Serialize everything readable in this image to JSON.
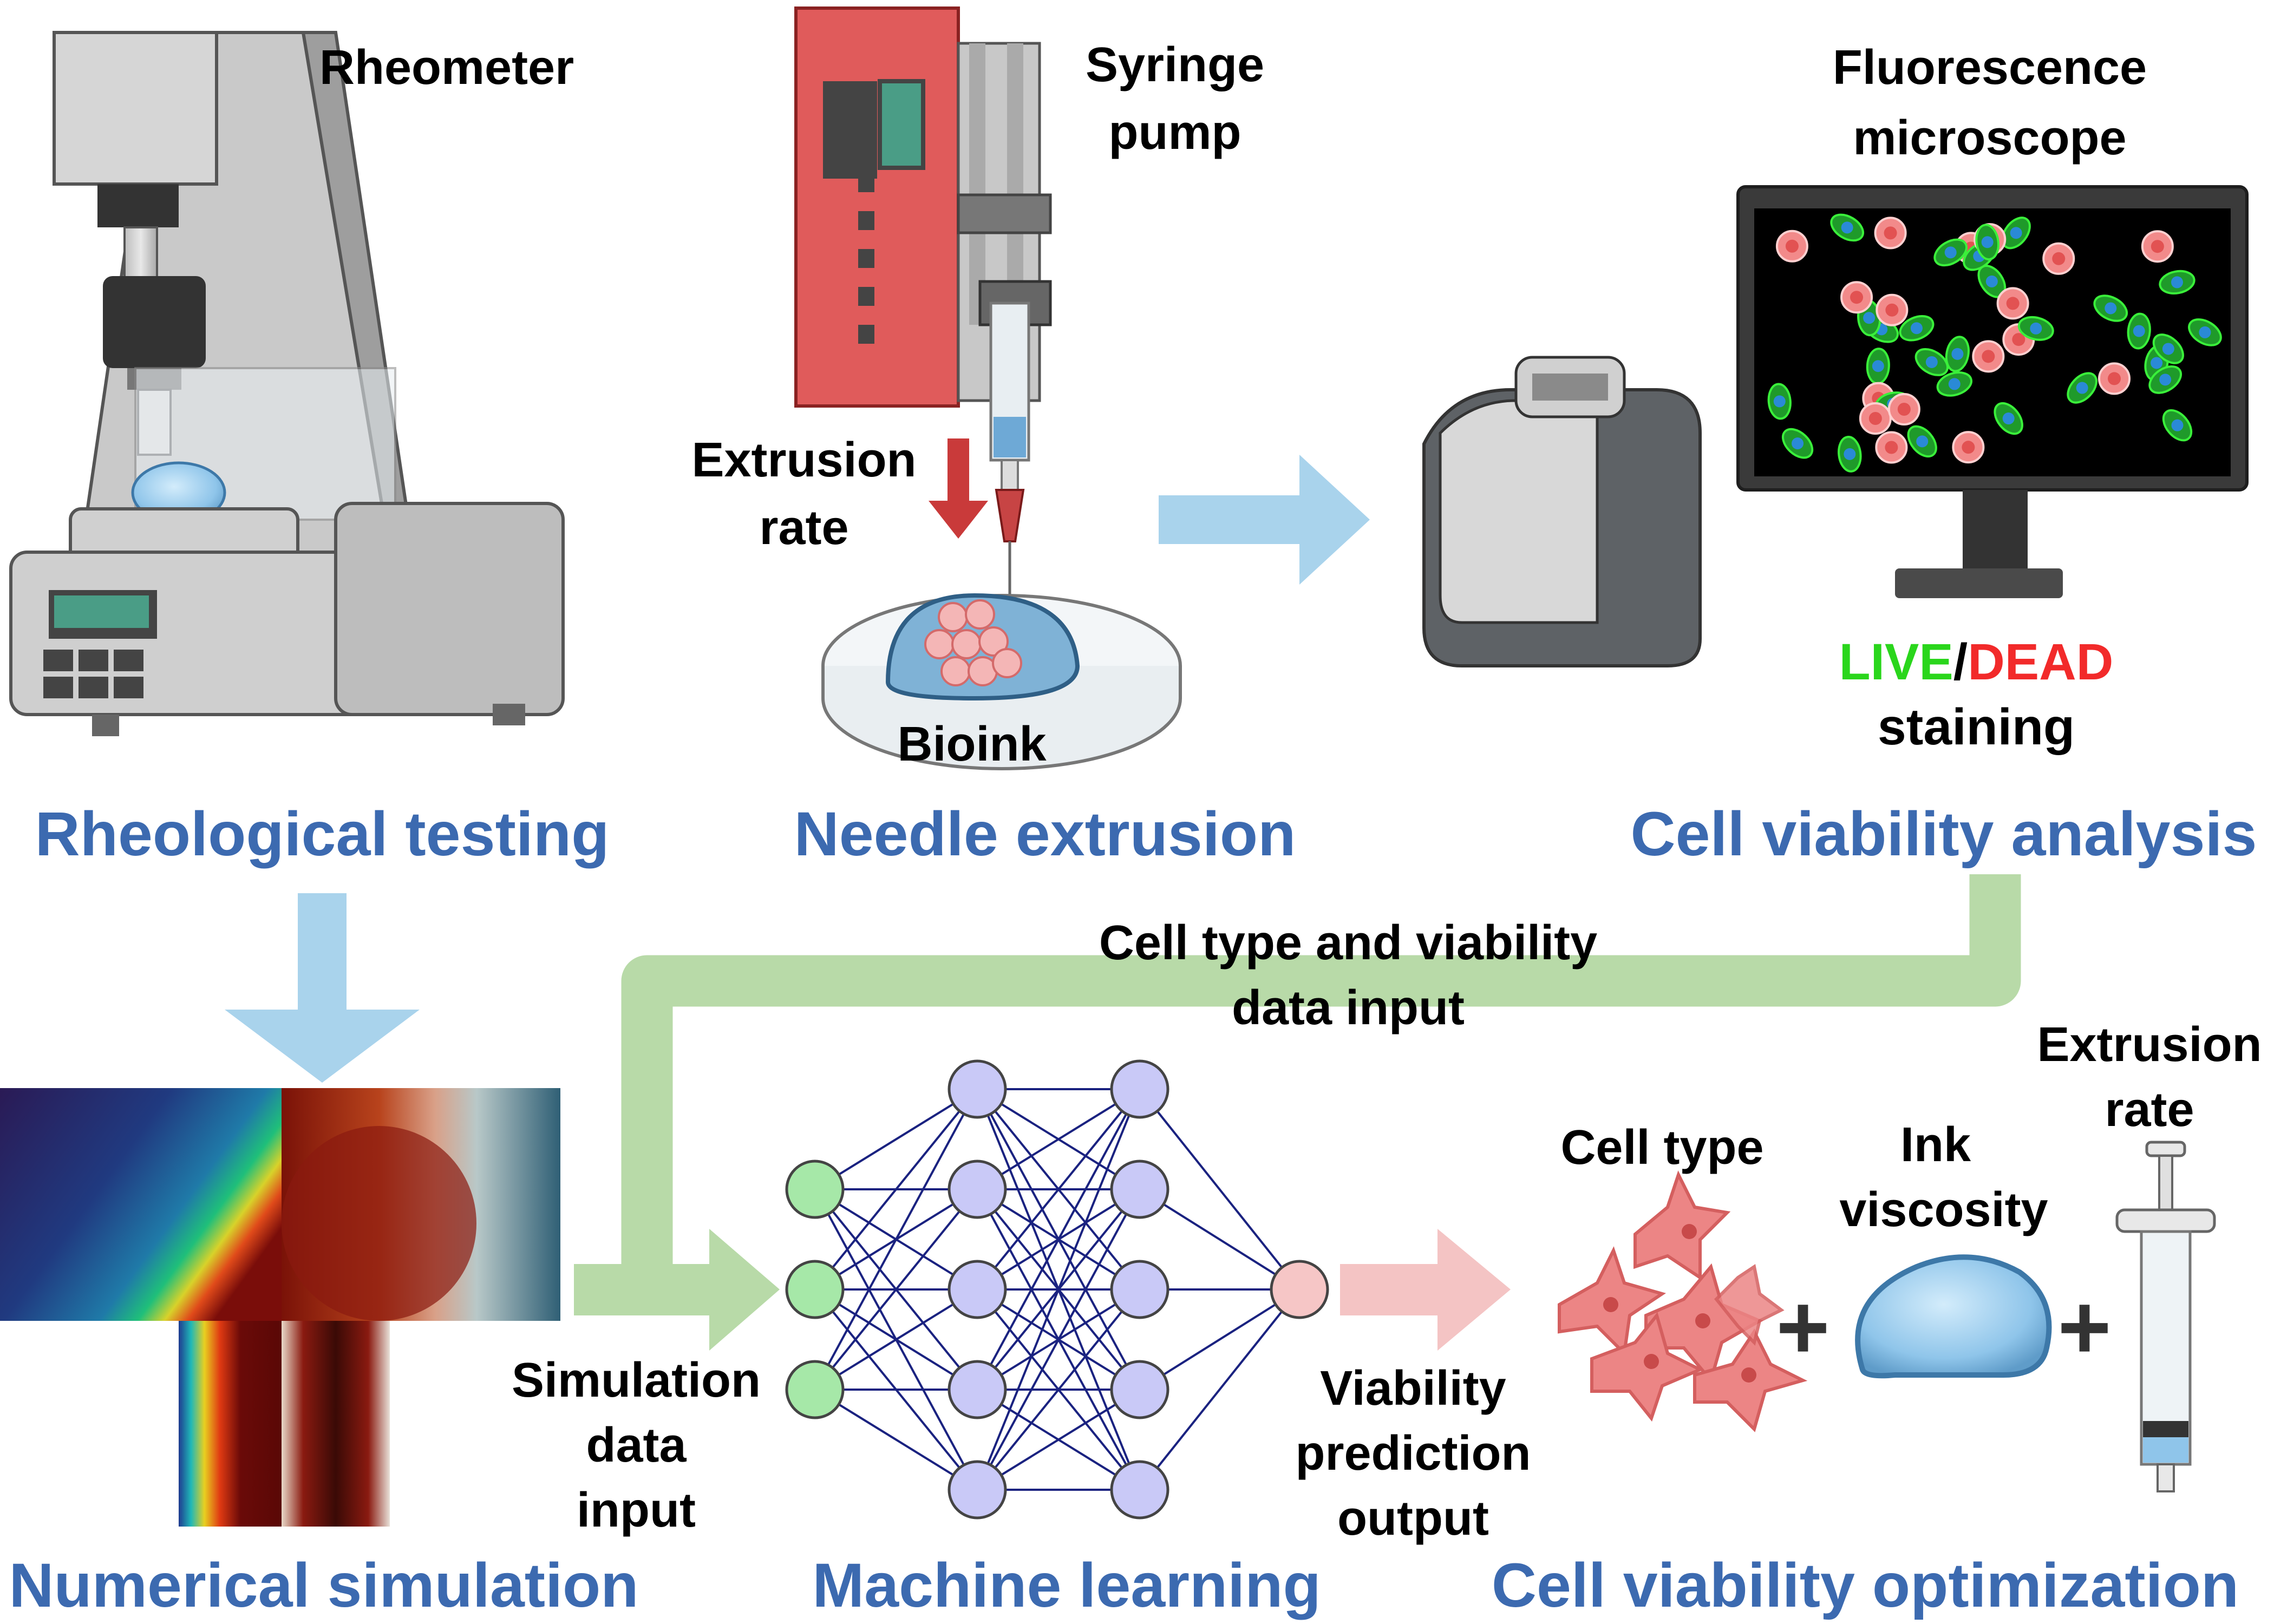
{
  "labels": {
    "rheometer": "Rheometer",
    "syringe_pump_1": "Syringe",
    "syringe_pump_2": "pump",
    "fluorescence_1": "Fluorescence",
    "fluorescence_2": "microscope",
    "extrusion_rate_top_1": "Extrusion",
    "extrusion_rate_top_2": "rate",
    "bioink": "Bioink",
    "live": "LIVE",
    "slash": "/",
    "dead": "DEAD",
    "staining": "staining",
    "cell_type_input_1": "Cell type and viability",
    "cell_type_input_2": "data input",
    "simulation_input_1": "Simulation",
    "simulation_input_2": "data",
    "simulation_input_3": "input",
    "viability_output_1": "Viability",
    "viability_output_2": "prediction",
    "viability_output_3": "output",
    "cell_type": "Cell type",
    "ink_viscosity_1": "Ink",
    "ink_viscosity_2": "viscosity",
    "extrusion_rate_bottom_1": "Extrusion",
    "extrusion_rate_bottom_2": "rate",
    "plus": "+"
  },
  "sections": {
    "rheological_testing": "Rheological testing",
    "needle_extrusion": "Needle extrusion",
    "cell_viability_analysis": "Cell viability analysis",
    "numerical_simulation": "Numerical simulation",
    "machine_learning": "Machine learning",
    "cell_viability_optimization": "Cell viability optimization"
  },
  "colors": {
    "section_title": "#3c6ab0",
    "live": "#2ad61c",
    "dead": "#f22a2a",
    "arrow_blue": "#a9d3ec",
    "arrow_green": "#b8daa8",
    "arrow_pink": "#f4c4c4",
    "node_input": "#a6e8a8",
    "node_hidden": "#c9c9f7",
    "node_output": "#f6c6c6",
    "edge": "#1a2280"
  },
  "network": {
    "layers": [
      3,
      5,
      5,
      1
    ]
  },
  "icons": [
    "rheometer-icon",
    "syringe-pump-icon",
    "petri-dish-icon",
    "fluorescence-microscope-icon",
    "monitor-icon",
    "simulation-heatmap",
    "neural-network",
    "cells-icon",
    "ink-droplet-icon",
    "syringe-icon"
  ]
}
